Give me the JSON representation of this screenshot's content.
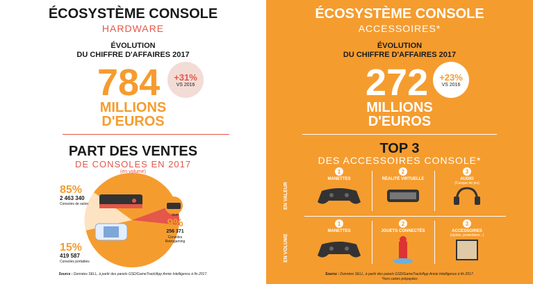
{
  "left": {
    "title": "ÉCOSYSTÈME CONSOLE",
    "subtitle": "HARDWARE",
    "evo_line1": "ÉVOLUTION",
    "evo_line2": "DU CHIFFRE D'AFFAIRES 2017",
    "big_value": "784",
    "unit_line1": "MILLIONS",
    "unit_line2": "D'EUROS",
    "badge_pct": "+31%",
    "badge_vs": "VS 2016",
    "section_title": "PART DES VENTES",
    "section_sub": "DE CONSOLES EN 2017",
    "section_note": "(en volume)",
    "salon_pct": "85%",
    "salon_count": "2 463 340",
    "salon_label": "Consoles de salon",
    "retro_prefix": "dont",
    "retro_pct": "9%",
    "retro_count": "256 371",
    "retro_label1": "Consoles",
    "retro_label2": "Retrogaming",
    "port_pct": "15%",
    "port_count": "419 587",
    "port_label": "Consoles portables",
    "source_bold": "Source :",
    "source_text": "Données SELL, à partir des panels GSD/GameTrack/App Annie Intelligence à fin 2017.",
    "colors": {
      "orange": "#f59c2f",
      "red": "#e4574a",
      "dark": "#1a1a1a"
    }
  },
  "right": {
    "title": "ÉCOSYSTÈME CONSOLE",
    "subtitle": "ACCESSOIRES*",
    "evo_line1": "ÉVOLUTION",
    "evo_line2": "DU CHIFFRE D'AFFAIRES 2017",
    "big_value": "272",
    "unit_line1": "MILLIONS",
    "unit_line2": "D'EUROS",
    "badge_pct": "+23%",
    "badge_vs": "VS 2016",
    "top_title": "TOP 3",
    "top_sub": "DES ACCESSOIRES CONSOLE*",
    "row_valeur": "EN VALEUR",
    "row_volume": "EN VOLUME",
    "valeur_items": [
      {
        "num": "1",
        "label": "MANETTES",
        "note": ""
      },
      {
        "num": "2",
        "label": "RÉALITÉ VIRTUELLE",
        "note": ""
      },
      {
        "num": "3",
        "label": "AUDIO",
        "note": "(Casque de jeu)"
      }
    ],
    "volume_items": [
      {
        "num": "1",
        "label": "MANETTES",
        "note": ""
      },
      {
        "num": "2",
        "label": "JOUETS CONNECTÉS",
        "note": ""
      },
      {
        "num": "3",
        "label": "ACCESSOIRES",
        "note": "(stylets, protections...)"
      }
    ],
    "source_bold": "Source :",
    "source_text": "Données SELL, à partir des panels GSD/GameTrack/App Annie Intelligence à fin 2017.",
    "footnote": "*hors cartes prépayées"
  }
}
